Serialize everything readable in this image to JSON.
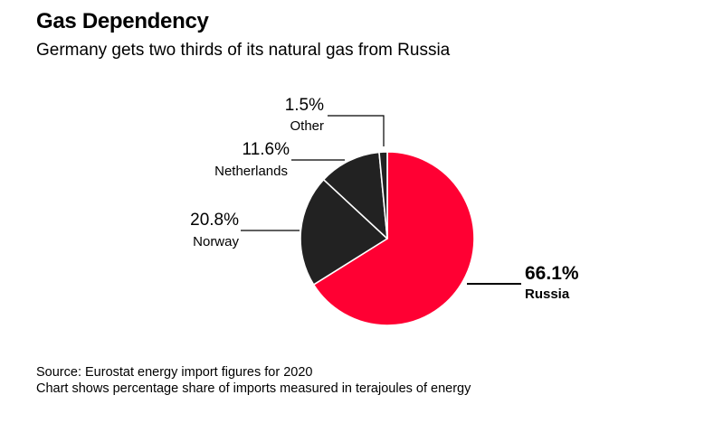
{
  "header": {
    "title": "Gas Dependency",
    "subtitle": "Germany gets two thirds of its natural gas from Russia"
  },
  "footer": {
    "source": "Source: Eurostat energy import figures for 2020",
    "note": "Chart shows percentage share of imports measured in terajoules of energy"
  },
  "chart_data": {
    "type": "pie",
    "title": "Gas Dependency",
    "subtitle": "Germany gets two thirds of its natural gas from Russia",
    "slices": [
      {
        "label": "Russia",
        "value_label": "66.1%",
        "value": 66.1,
        "color": "#ff0033",
        "emphasis": true
      },
      {
        "label": "Norway",
        "value_label": "20.8%",
        "value": 20.8,
        "color": "#222222",
        "emphasis": false
      },
      {
        "label": "Netherlands",
        "value_label": "11.6%",
        "value": 11.6,
        "color": "#222222",
        "emphasis": false
      },
      {
        "label": "Other",
        "value_label": "1.5%",
        "value": 1.5,
        "color": "#222222",
        "emphasis": false
      }
    ],
    "start": "12 o'clock",
    "direction": "clockwise",
    "slice_separator_color": "#ffffff",
    "leader_line_color": "#000000"
  }
}
